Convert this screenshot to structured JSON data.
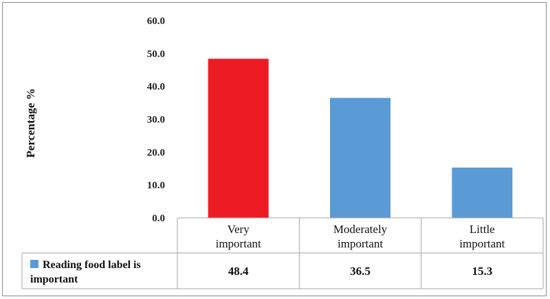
{
  "chart_data": {
    "type": "bar",
    "title": "",
    "xlabel": "",
    "ylabel": "Percentage %",
    "ylim": [
      0,
      60
    ],
    "yticks": [
      "0.0",
      "10.0",
      "20.0",
      "30.0",
      "40.0",
      "50.0",
      "60.0"
    ],
    "grid": false,
    "categories": [
      [
        "Very",
        "important"
      ],
      [
        "Moderately",
        "important"
      ],
      [
        "Little",
        "important"
      ]
    ],
    "series": [
      {
        "name": [
          "Reading food label is",
          "important"
        ],
        "values": [
          48.4,
          36.5,
          15.3
        ],
        "labels": [
          "48.4",
          "36.5",
          "15.3"
        ],
        "color": "#5b9bd5",
        "highlight": {
          "index": 0,
          "color": "#ed1c24"
        }
      }
    ],
    "data_table": true
  }
}
